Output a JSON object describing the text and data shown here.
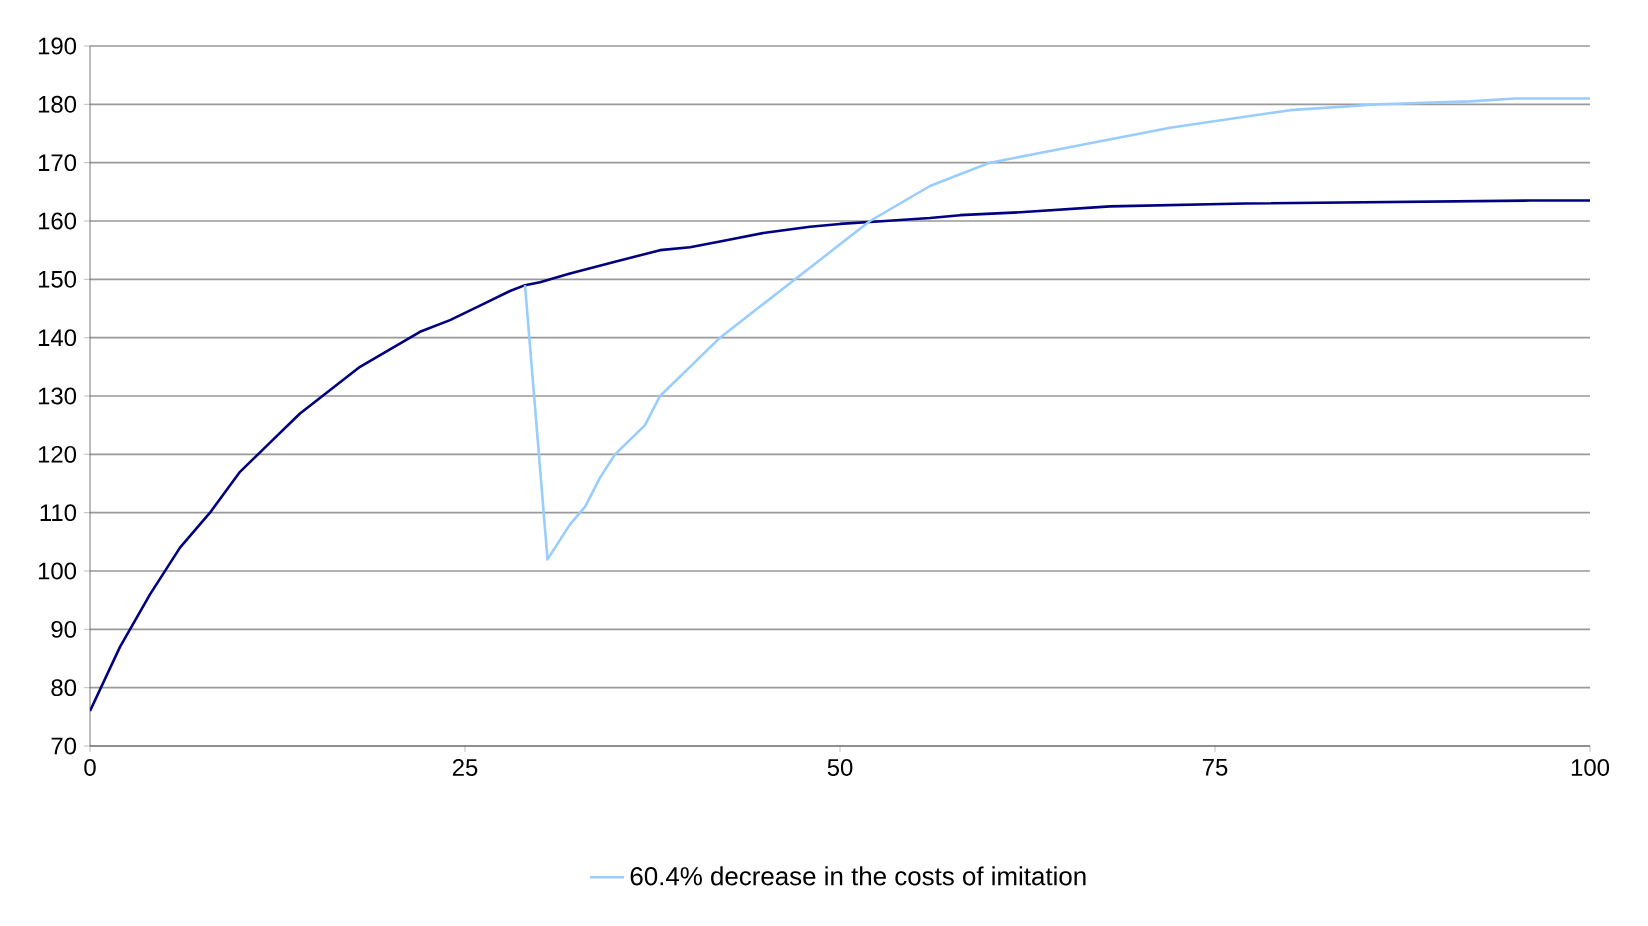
{
  "chart_data": {
    "type": "line",
    "xlim": [
      0,
      100
    ],
    "ylim": [
      70,
      190
    ],
    "xticks": [
      0,
      25,
      50,
      75,
      100
    ],
    "yticks": [
      70,
      80,
      90,
      100,
      110,
      120,
      130,
      140,
      150,
      160,
      170,
      180,
      190
    ],
    "grid": "y",
    "legend": "bottom",
    "marker": "none",
    "line_style": "solid",
    "series": [
      {
        "color": "#000080",
        "x": [
          0,
          2,
          4,
          6,
          8,
          10,
          12,
          14,
          16,
          18,
          20,
          22,
          24,
          26,
          28,
          29,
          30,
          32,
          35,
          38,
          40,
          42,
          45,
          48,
          50,
          53,
          56,
          58,
          62,
          68,
          77,
          96,
          100
        ],
        "values": [
          76,
          87,
          96,
          104,
          110,
          117,
          122,
          127,
          131,
          135,
          138,
          141,
          143,
          145.5,
          148,
          149,
          149.5,
          151,
          153,
          155,
          155.5,
          156.5,
          158,
          159,
          159.5,
          160,
          160.5,
          161,
          161.5,
          162.5,
          163,
          163.5,
          163.5
        ]
      },
      {
        "name": "60.4% decrease in the costs of imitation",
        "color": "#99ccff",
        "x": [
          29,
          30.5,
          32,
          33,
          34,
          35,
          37,
          38,
          40,
          42,
          44,
          46,
          48,
          50,
          52,
          54,
          56,
          58,
          60,
          64,
          68,
          72,
          76,
          80,
          86,
          92,
          95,
          100
        ],
        "values": [
          149,
          102,
          108,
          111,
          116,
          120,
          125,
          130,
          135,
          140,
          144,
          148,
          152,
          156,
          160,
          163,
          166,
          168,
          170,
          172,
          174,
          176,
          177.5,
          179,
          180,
          180.5,
          181,
          181
        ]
      }
    ]
  }
}
